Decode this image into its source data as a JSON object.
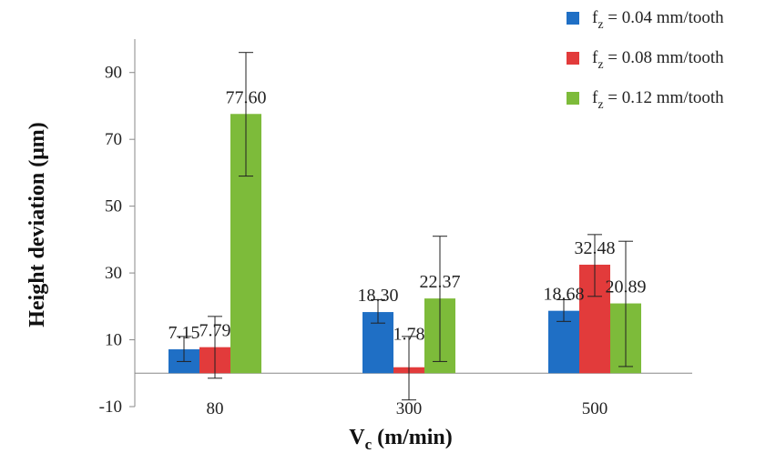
{
  "chart_data": {
    "type": "bar",
    "categories": [
      "80",
      "300",
      "500"
    ],
    "series": [
      {
        "name": "f",
        "sub": "z",
        "rest": " = 0.04 mm/tooth",
        "color": "#1f6fc5",
        "values": [
          7.15,
          18.3,
          18.68
        ],
        "labels": [
          "7.15",
          "18.30",
          "18.68"
        ],
        "err_low": [
          3.5,
          15.0,
          15.5
        ],
        "err_high": [
          11.0,
          22.0,
          22.0
        ]
      },
      {
        "name": "f",
        "sub": "z",
        "rest": " = 0.08 mm/tooth",
        "color": "#e23b3b",
        "values": [
          7.79,
          1.78,
          32.48
        ],
        "labels": [
          "7.79",
          "1.78",
          "32.48"
        ],
        "err_low": [
          -1.5,
          -8.0,
          23.0
        ],
        "err_high": [
          17.0,
          11.0,
          41.5
        ]
      },
      {
        "name": "f",
        "sub": "z",
        "rest": " = 0.12 mm/tooth",
        "color": "#7dbb3a",
        "values": [
          77.6,
          22.37,
          20.89
        ],
        "labels": [
          "77.60",
          "22.37",
          "20.89"
        ],
        "err_low": [
          59.0,
          3.5,
          2.0
        ],
        "err_high": [
          96.0,
          41.0,
          39.5
        ]
      }
    ],
    "yticks": [
      "-10",
      "10",
      "30",
      "50",
      "70",
      "90"
    ],
    "ylim": [
      -10,
      100
    ],
    "ylabel": "Height deviation (μm)",
    "xlabel_main": "V",
    "xlabel_sub": "c",
    "xlabel_rest": " (m/min)",
    "legend_position": "top-right",
    "grid": false
  }
}
